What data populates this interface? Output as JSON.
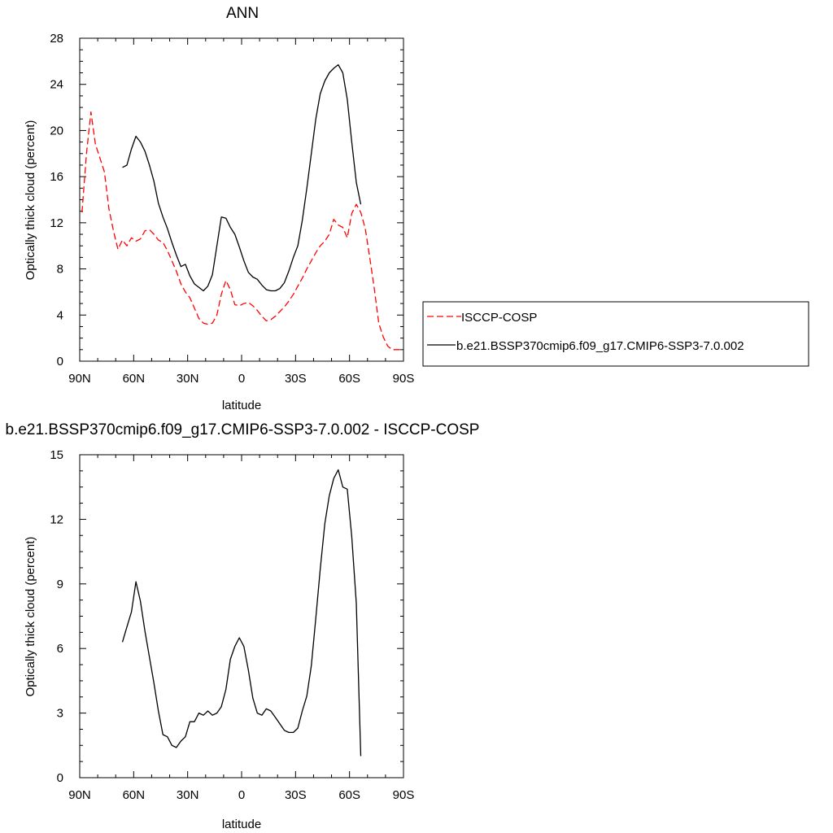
{
  "chart_data": [
    {
      "type": "line",
      "title": "ANN",
      "xlabel": "latitude",
      "ylabel": "Optically thick cloud (percent)",
      "xlim": [
        90,
        -90
      ],
      "ylim": [
        0,
        28
      ],
      "x_ticks": [
        90,
        60,
        30,
        0,
        -30,
        -60,
        -90
      ],
      "x_tick_labels": [
        "90N",
        "60N",
        "30N",
        "0",
        "30S",
        "60S",
        "90S"
      ],
      "y_ticks": [
        0,
        4,
        8,
        12,
        16,
        20,
        24,
        28
      ],
      "y_tick_labels": [
        "0",
        "4",
        "8",
        "12",
        "16",
        "20",
        "24",
        "28"
      ],
      "legend": "right",
      "grid": false,
      "series": [
        {
          "name": "ISCCP-COSP",
          "color": "#ff0000",
          "dash": "dashed",
          "x": [
            88.75,
            86.25,
            83.75,
            81.25,
            78.75,
            76.25,
            73.75,
            71.25,
            68.75,
            66.25,
            63.75,
            61.25,
            58.75,
            56.25,
            53.75,
            51.25,
            48.75,
            46.25,
            43.75,
            41.25,
            38.75,
            36.25,
            33.75,
            31.25,
            28.75,
            26.25,
            23.75,
            21.25,
            18.75,
            16.25,
            13.75,
            11.25,
            8.75,
            6.25,
            3.75,
            1.25,
            -1.25,
            -3.75,
            -6.25,
            -8.75,
            -11.25,
            -13.75,
            -16.25,
            -18.75,
            -21.25,
            -23.75,
            -26.25,
            -28.75,
            -31.25,
            -33.75,
            -36.25,
            -38.75,
            -41.25,
            -43.75,
            -46.25,
            -48.75,
            -51.25,
            -53.75,
            -56.25,
            -58.75,
            -61.25,
            -63.75,
            -66.25,
            -68.75,
            -71.25,
            -73.75,
            -76.25,
            -78.75,
            -81.25,
            -83.75,
            -86.25,
            -88.75
          ],
          "y": [
            12.9,
            18.0,
            21.6,
            18.8,
            17.6,
            16.4,
            13.2,
            11.3,
            9.7,
            10.5,
            10.0,
            10.7,
            10.4,
            10.6,
            11.3,
            11.4,
            11.0,
            10.5,
            10.3,
            9.6,
            8.7,
            7.8,
            6.7,
            6.0,
            5.5,
            4.6,
            3.7,
            3.3,
            3.2,
            3.3,
            4.0,
            5.8,
            7.0,
            6.2,
            4.9,
            4.8,
            5.0,
            5.1,
            4.8,
            4.4,
            3.9,
            3.5,
            3.6,
            3.9,
            4.3,
            4.7,
            5.2,
            5.8,
            6.5,
            7.2,
            8.0,
            8.7,
            9.4,
            10.0,
            10.4,
            11.0,
            12.3,
            11.8,
            11.6,
            10.7,
            12.8,
            13.6,
            12.9,
            11.5,
            9.0,
            6.3,
            3.3,
            2.1,
            1.3,
            1.0,
            1.0,
            1.0
          ]
        },
        {
          "name": "b.e21.BSSP370cmip6.f09_g17.CMIP6-SSP3-7.0.002",
          "color": "#000000",
          "dash": "solid",
          "x": [
            66.25,
            63.75,
            61.25,
            58.75,
            56.25,
            53.75,
            51.25,
            48.75,
            46.25,
            43.75,
            41.25,
            38.75,
            36.25,
            33.75,
            31.25,
            28.75,
            26.25,
            23.75,
            21.25,
            18.75,
            16.25,
            13.75,
            11.25,
            8.75,
            6.25,
            3.75,
            1.25,
            -1.25,
            -3.75,
            -6.25,
            -8.75,
            -11.25,
            -13.75,
            -16.25,
            -18.75,
            -21.25,
            -23.75,
            -26.25,
            -28.75,
            -31.25,
            -33.75,
            -36.25,
            -38.75,
            -41.25,
            -43.75,
            -46.25,
            -48.75,
            -51.25,
            -53.75,
            -56.25,
            -58.75,
            -61.25,
            -63.75,
            -66.25
          ],
          "y": [
            16.8,
            17.0,
            18.4,
            19.5,
            19.0,
            18.2,
            17.0,
            15.6,
            13.7,
            12.5,
            11.5,
            10.3,
            9.2,
            8.2,
            8.4,
            7.4,
            6.7,
            6.4,
            6.1,
            6.5,
            7.5,
            10.0,
            12.5,
            12.4,
            11.6,
            11.0,
            9.9,
            8.7,
            7.7,
            7.3,
            7.1,
            6.6,
            6.2,
            6.1,
            6.1,
            6.3,
            6.8,
            7.8,
            9.0,
            10.0,
            12.2,
            15.0,
            18.0,
            21.0,
            23.2,
            24.3,
            25.0,
            25.4,
            25.7,
            25.0,
            22.7,
            19.0,
            15.5,
            13.6
          ]
        }
      ]
    },
    {
      "type": "line",
      "title": "b.e21.BSSP370cmip6.f09_g17.CMIP6-SSP3-7.0.002 - ISCCP-COSP",
      "xlabel": "latitude",
      "ylabel": "Optically thick cloud (percent)",
      "xlim": [
        90,
        -90
      ],
      "ylim": [
        0,
        15
      ],
      "x_ticks": [
        90,
        60,
        30,
        0,
        -30,
        -60,
        -90
      ],
      "x_tick_labels": [
        "90N",
        "60N",
        "30N",
        "0",
        "30S",
        "60S",
        "90S"
      ],
      "y_ticks": [
        0,
        3,
        6,
        9,
        12,
        15
      ],
      "y_tick_labels": [
        "0",
        "3",
        "6",
        "9",
        "12",
        "15"
      ],
      "legend": "none",
      "grid": false,
      "series": [
        {
          "color": "#000000",
          "dash": "solid",
          "x": [
            66.25,
            63.75,
            61.25,
            58.75,
            56.25,
            53.75,
            51.25,
            48.75,
            46.25,
            43.75,
            41.25,
            38.75,
            36.25,
            33.75,
            31.25,
            28.75,
            26.25,
            23.75,
            21.25,
            18.75,
            16.25,
            13.75,
            11.25,
            8.75,
            6.25,
            3.75,
            1.25,
            -1.25,
            -3.75,
            -6.25,
            -8.75,
            -11.25,
            -13.75,
            -16.25,
            -18.75,
            -21.25,
            -23.75,
            -26.25,
            -28.75,
            -31.25,
            -33.75,
            -36.25,
            -38.75,
            -41.25,
            -43.75,
            -46.25,
            -48.75,
            -51.25,
            -53.75,
            -56.25,
            -58.75,
            -61.25,
            -63.75,
            -66.25
          ],
          "y": [
            6.3,
            7.0,
            7.7,
            9.1,
            8.2,
            6.8,
            5.6,
            4.4,
            3.1,
            2.0,
            1.9,
            1.5,
            1.4,
            1.7,
            1.9,
            2.6,
            2.6,
            3.0,
            2.9,
            3.1,
            2.9,
            3.0,
            3.3,
            4.1,
            5.5,
            6.1,
            6.5,
            6.1,
            5.0,
            3.7,
            3.0,
            2.9,
            3.2,
            3.1,
            2.8,
            2.5,
            2.2,
            2.1,
            2.1,
            2.3,
            3.1,
            3.8,
            5.2,
            7.4,
            9.7,
            11.8,
            13.1,
            13.9,
            14.3,
            13.5,
            13.4,
            11.2,
            8.1,
            1.0
          ]
        }
      ]
    }
  ]
}
